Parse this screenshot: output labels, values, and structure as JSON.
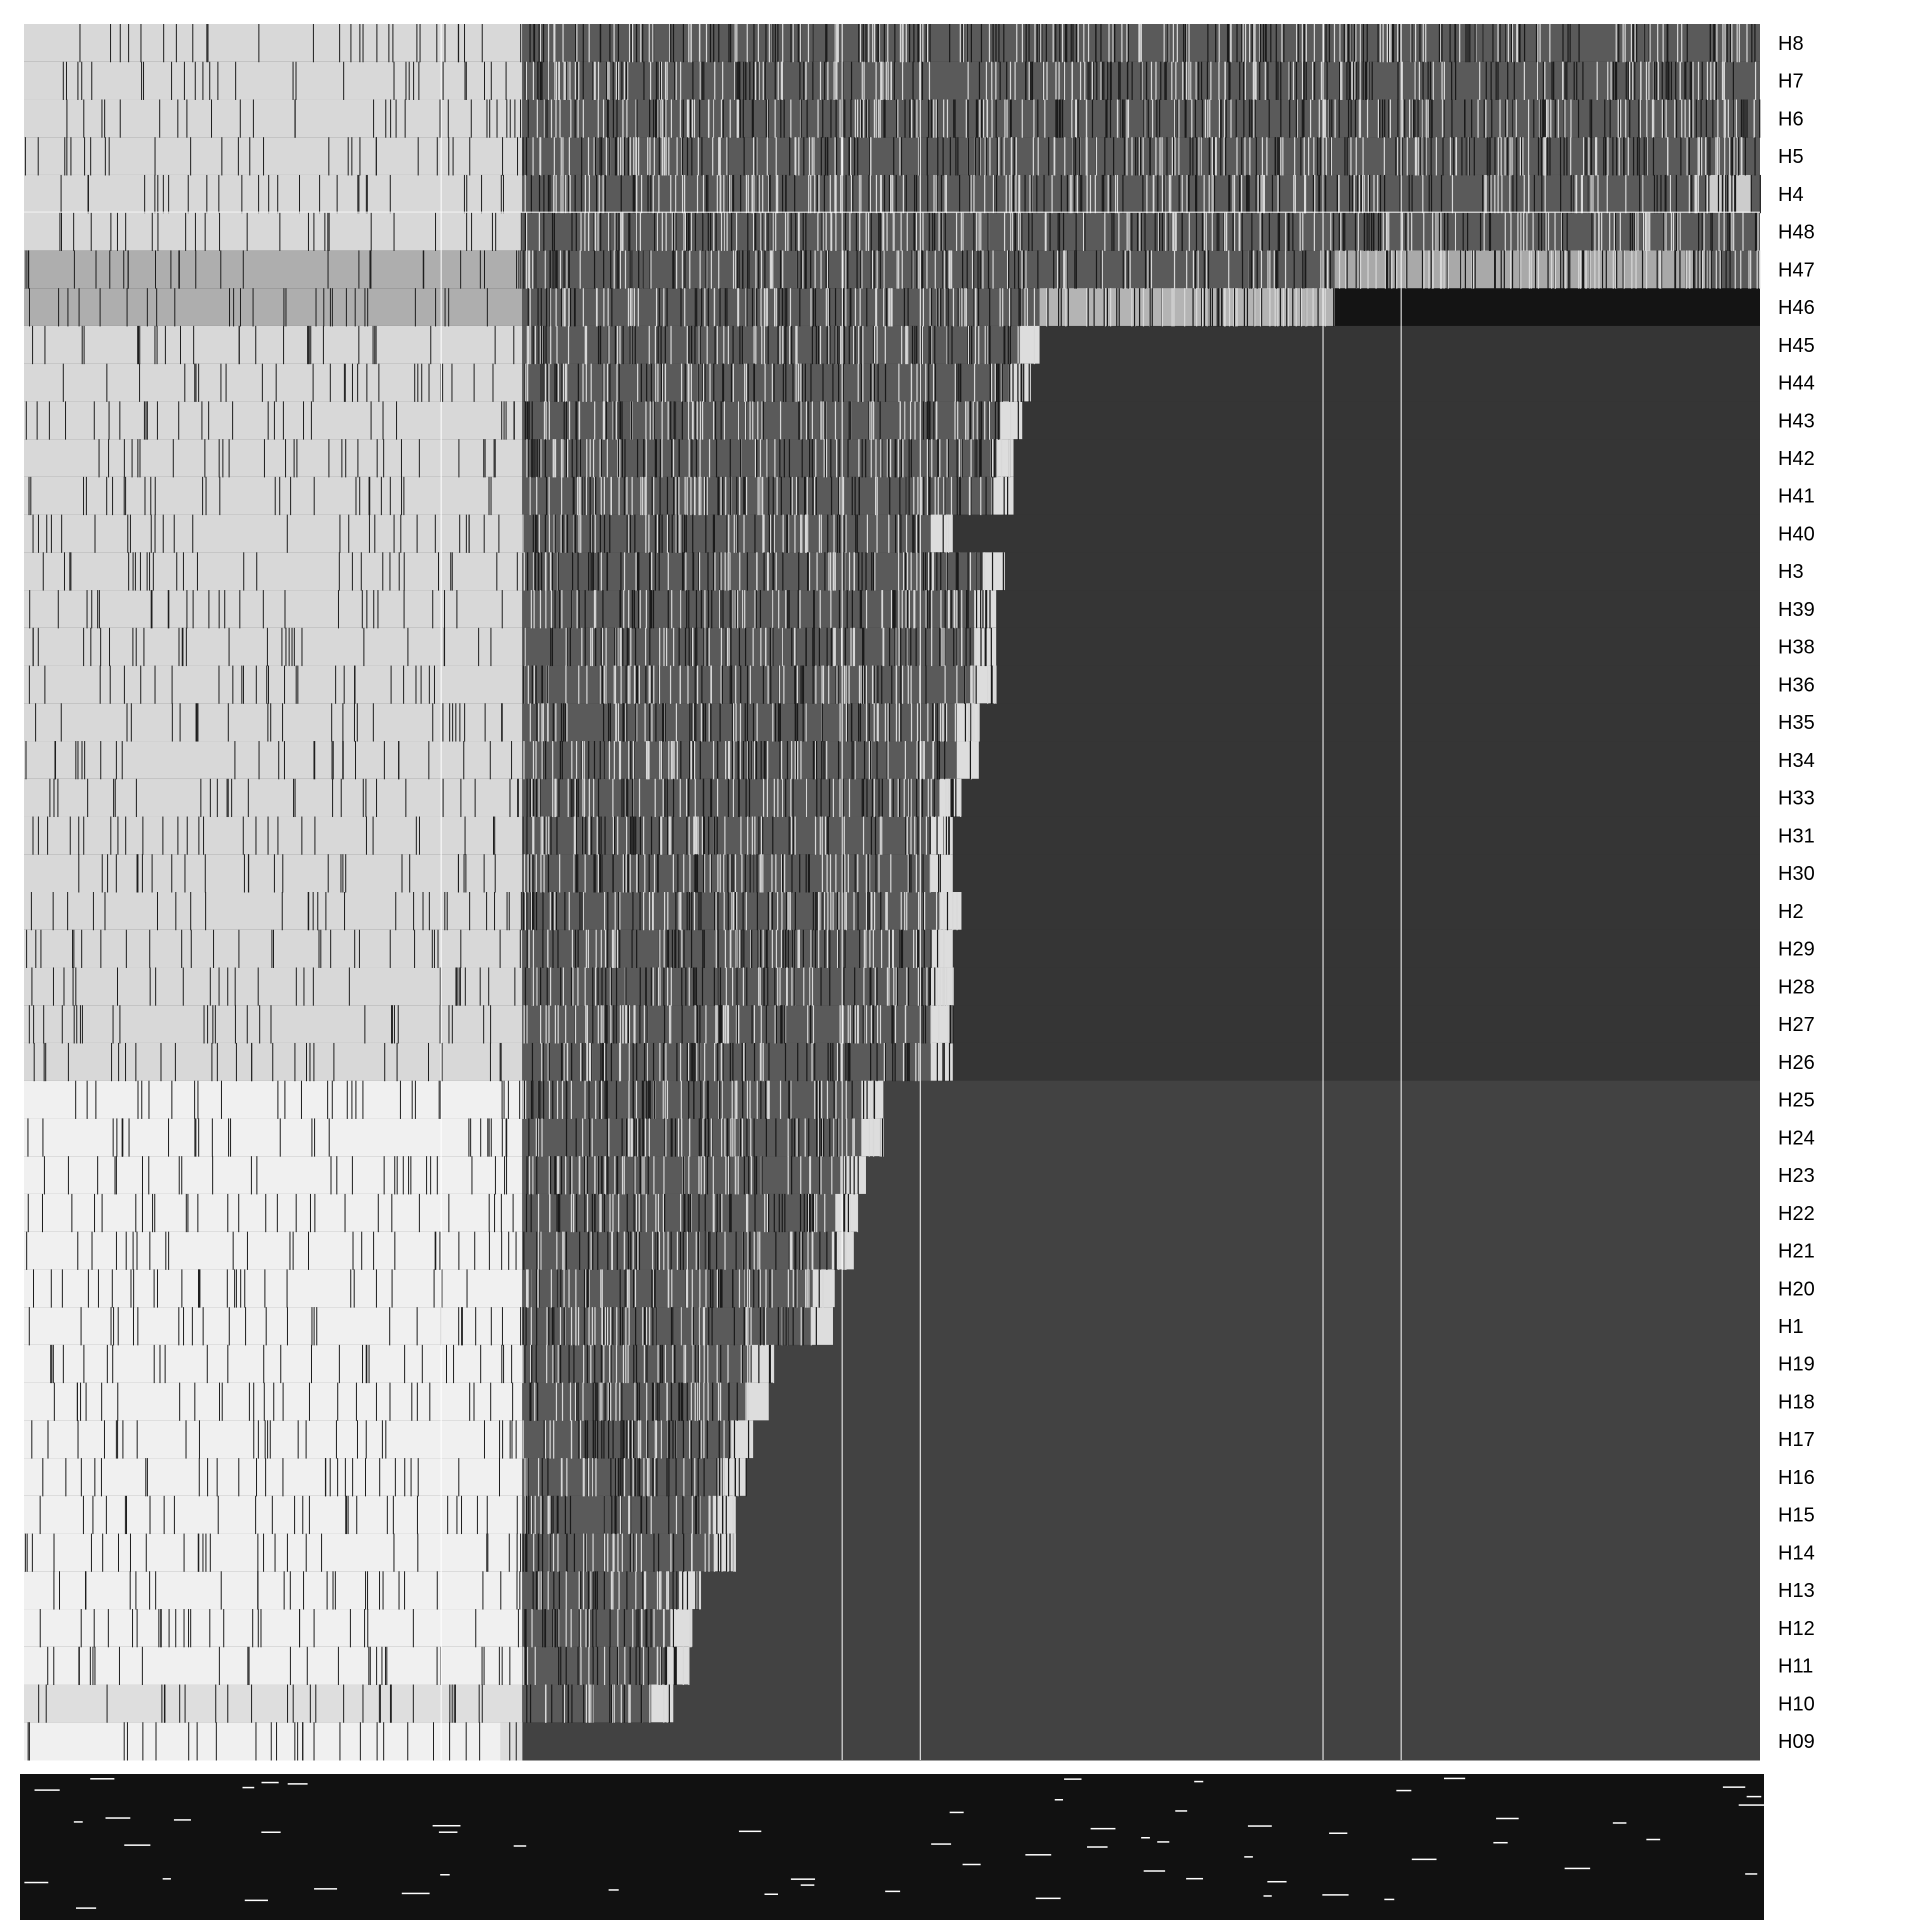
{
  "chart_data": {
    "type": "heatmap",
    "title": "",
    "xlabel": "",
    "ylabel": "",
    "rows": [
      "H8",
      "H7",
      "H6",
      "H5",
      "H4",
      "H48",
      "H47",
      "H46",
      "H45",
      "H44",
      "H43",
      "H42",
      "H41",
      "H40",
      "H3",
      "H39",
      "H38",
      "H36",
      "H35",
      "H34",
      "H33",
      "H31",
      "H30",
      "H2",
      "H29",
      "H28",
      "H27",
      "H26",
      "H25",
      "H24",
      "H23",
      "H22",
      "H21",
      "H20",
      "H1",
      "H19",
      "H18",
      "H17",
      "H16",
      "H15",
      "H14",
      "H13",
      "H12",
      "H11",
      "H10",
      "H09"
    ],
    "row_labels_position": "right",
    "column_labels": "dense, overplotted and illegible at bottom",
    "value_scale": "grayscale (light = present/high, dark = absent/low)",
    "colors": {
      "light": "#dcdcdc",
      "mid": "#a8a8a8",
      "dark": "#353535",
      "darkest": "#0a0a0a"
    },
    "row_end_fraction": [
      1.0,
      1.0,
      1.0,
      1.0,
      1.0,
      1.0,
      1.0,
      0.755,
      0.585,
      0.58,
      0.575,
      0.57,
      0.57,
      0.535,
      0.565,
      0.56,
      0.56,
      0.56,
      0.55,
      0.55,
      0.54,
      0.535,
      0.535,
      0.54,
      0.535,
      0.535,
      0.535,
      0.535,
      0.495,
      0.495,
      0.485,
      0.48,
      0.478,
      0.467,
      0.466,
      0.432,
      0.429,
      0.42,
      0.416,
      0.41,
      0.41,
      0.39,
      0.385,
      0.383,
      0.374,
      0.287
    ]
  }
}
